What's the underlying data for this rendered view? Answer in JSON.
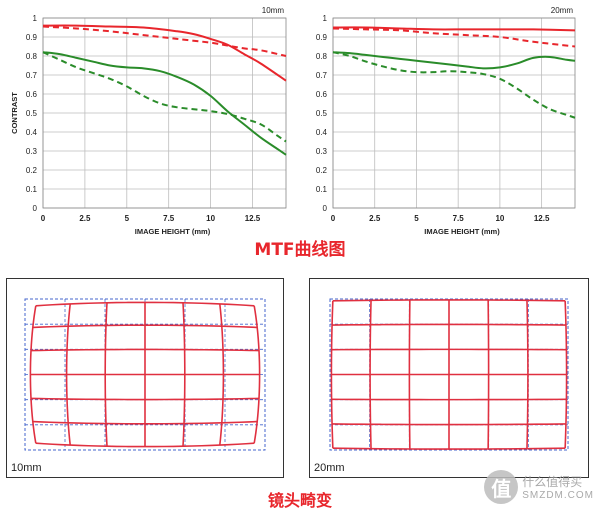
{
  "chart_data": [
    {
      "type": "line",
      "title": "10mm",
      "xlabel": "IMAGE HEIGHT (mm)",
      "ylabel": "CONTRAST",
      "xlim": [
        0,
        14.5
      ],
      "ylim": [
        0,
        1
      ],
      "xticks": [
        "0",
        "2.5",
        "5",
        "7.5",
        "10",
        "12.5"
      ],
      "yticks": [
        "0",
        "0.1",
        "0.2",
        "0.3",
        "0.4",
        "0.5",
        "0.6",
        "0.7",
        "0.8",
        "0.9",
        "1"
      ],
      "grid": true,
      "series": [
        {
          "color": "#e8262c",
          "style": "solid",
          "x": [
            0,
            2,
            4,
            6,
            8,
            9,
            10,
            11,
            12,
            13,
            14.5
          ],
          "y": [
            0.96,
            0.96,
            0.955,
            0.95,
            0.93,
            0.915,
            0.89,
            0.86,
            0.81,
            0.76,
            0.67
          ]
        },
        {
          "color": "#e8262c",
          "style": "dashed",
          "x": [
            0,
            2,
            4,
            6,
            8,
            10,
            11,
            12,
            13,
            14.5
          ],
          "y": [
            0.955,
            0.945,
            0.93,
            0.91,
            0.89,
            0.87,
            0.855,
            0.84,
            0.83,
            0.8
          ]
        },
        {
          "color": "#2a8c2a",
          "style": "solid",
          "x": [
            0,
            1,
            2,
            3,
            4,
            5,
            6,
            7,
            8,
            9,
            10,
            11,
            12,
            13,
            14,
            14.5
          ],
          "y": [
            0.82,
            0.81,
            0.79,
            0.77,
            0.75,
            0.74,
            0.735,
            0.72,
            0.69,
            0.65,
            0.59,
            0.51,
            0.44,
            0.37,
            0.31,
            0.28
          ]
        },
        {
          "color": "#2a8c2a",
          "style": "dashed",
          "x": [
            0,
            1,
            2,
            3,
            4,
            5,
            6,
            7,
            8,
            9,
            10,
            11,
            12,
            13,
            14,
            14.5
          ],
          "y": [
            0.82,
            0.78,
            0.74,
            0.71,
            0.68,
            0.64,
            0.59,
            0.55,
            0.53,
            0.52,
            0.51,
            0.495,
            0.47,
            0.44,
            0.38,
            0.35
          ]
        }
      ]
    },
    {
      "type": "line",
      "title": "20mm",
      "xlabel": "IMAGE HEIGHT (mm)",
      "ylabel": "",
      "xlim": [
        0,
        14.5
      ],
      "ylim": [
        0,
        1
      ],
      "xticks": [
        "0",
        "2.5",
        "5",
        "7.5",
        "10",
        "12.5"
      ],
      "yticks": [
        "0",
        "0.1",
        "0.2",
        "0.3",
        "0.4",
        "0.5",
        "0.6",
        "0.7",
        "0.8",
        "0.9",
        "1"
      ],
      "grid": true,
      "series": [
        {
          "color": "#e8262c",
          "style": "solid",
          "x": [
            0,
            2,
            4,
            6,
            8,
            10,
            12,
            14.5
          ],
          "y": [
            0.95,
            0.95,
            0.945,
            0.94,
            0.94,
            0.94,
            0.94,
            0.935
          ]
        },
        {
          "color": "#e8262c",
          "style": "dashed",
          "x": [
            0,
            2,
            4,
            6,
            8,
            10,
            12,
            14.5
          ],
          "y": [
            0.945,
            0.94,
            0.935,
            0.92,
            0.91,
            0.9,
            0.875,
            0.85
          ]
        },
        {
          "color": "#2a8c2a",
          "style": "solid",
          "x": [
            0,
            1,
            2,
            3,
            4,
            5,
            6,
            7,
            8,
            9,
            10,
            11,
            12,
            13,
            14,
            14.5
          ],
          "y": [
            0.82,
            0.815,
            0.805,
            0.795,
            0.785,
            0.775,
            0.765,
            0.755,
            0.745,
            0.735,
            0.74,
            0.76,
            0.79,
            0.795,
            0.78,
            0.775
          ]
        },
        {
          "color": "#2a8c2a",
          "style": "dashed",
          "x": [
            0,
            1,
            2,
            3,
            4,
            5,
            6,
            7,
            8,
            9,
            10,
            11,
            12,
            13,
            14,
            14.5
          ],
          "y": [
            0.82,
            0.8,
            0.77,
            0.745,
            0.725,
            0.715,
            0.715,
            0.72,
            0.715,
            0.705,
            0.68,
            0.63,
            0.57,
            0.52,
            0.49,
            0.475
          ]
        }
      ]
    }
  ],
  "captions": {
    "mtf": "MTF曲线图",
    "distortion": "镜头畸变"
  },
  "distortion_panels": [
    {
      "label": "10mm",
      "barrel": 0.045,
      "grid_color": "#e03040",
      "ideal_color": "#4466cc"
    },
    {
      "label": "20mm",
      "barrel": 0.012,
      "grid_color": "#e03040",
      "ideal_color": "#4466cc"
    }
  ],
  "watermark": {
    "icon": "值",
    "text_cn": "什么值得买",
    "url": "SMZDM.COM"
  }
}
